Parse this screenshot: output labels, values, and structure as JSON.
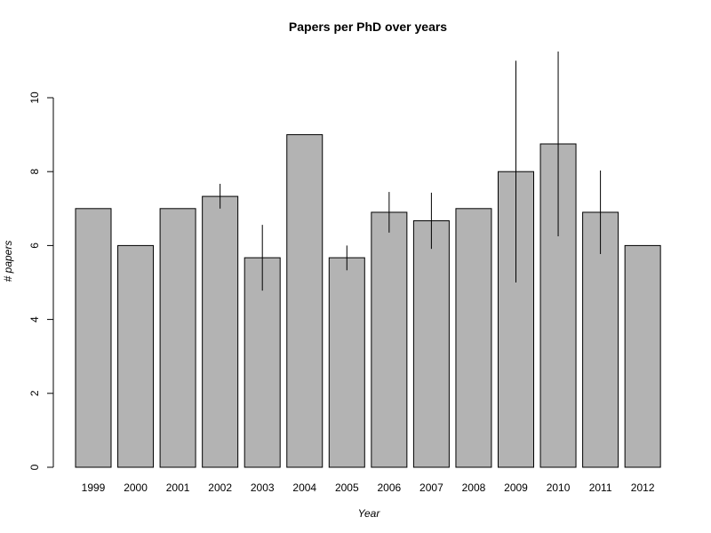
{
  "chart_data": {
    "type": "bar",
    "title": "Papers per PhD over years",
    "xlabel": "Year",
    "ylabel": "# papers",
    "categories": [
      "1999",
      "2000",
      "2001",
      "2002",
      "2003",
      "2004",
      "2005",
      "2006",
      "2007",
      "2008",
      "2009",
      "2010",
      "2011",
      "2012"
    ],
    "values": [
      7,
      6,
      7,
      7.33,
      5.67,
      9,
      5.67,
      6.9,
      6.67,
      7,
      8,
      8.75,
      6.9,
      6
    ],
    "error_bars": [
      null,
      null,
      null,
      [
        7.0,
        7.67
      ],
      [
        4.78,
        6.56
      ],
      null,
      [
        5.33,
        6.0
      ],
      [
        6.35,
        7.45
      ],
      [
        5.91,
        7.43
      ],
      null,
      [
        5.0,
        11.0
      ],
      [
        6.25,
        11.25
      ],
      [
        5.77,
        8.03
      ],
      null
    ],
    "yticks": [
      "0",
      "2",
      "4",
      "6",
      "8",
      "10"
    ],
    "ylim": [
      0,
      11.5
    ],
    "grid": false,
    "bar_color": "#b3b3b3",
    "bar_stroke": "#000000"
  }
}
